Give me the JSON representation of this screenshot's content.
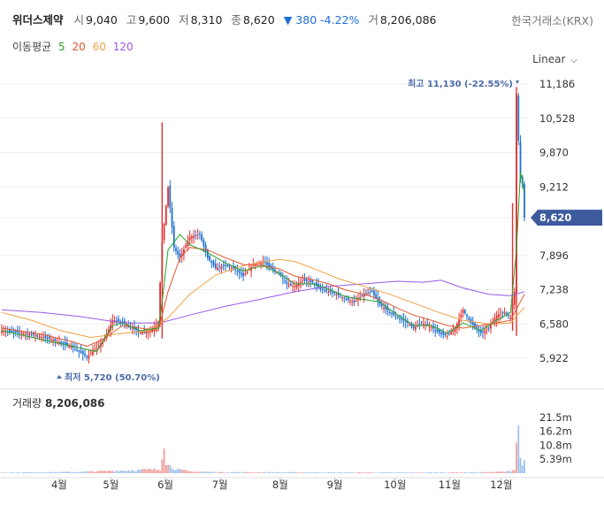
{
  "header": {
    "name": "위더스제약",
    "open_label": "시",
    "open": "9,040",
    "high_label": "고",
    "high": "9,600",
    "low_label": "저",
    "low": "8,310",
    "close_label": "종",
    "close": "8,620",
    "change_arrow": "▼",
    "change": "380",
    "change_pct": "-4.22%",
    "volume_label": "거",
    "volume": "8,206,086"
  },
  "exchange": "한국거래소(KRX)",
  "ma_legend": {
    "label": "이동평균",
    "periods": [
      {
        "text": "5",
        "color": "#2ca02c"
      },
      {
        "text": "20",
        "color": "#e4572e"
      },
      {
        "text": "60",
        "color": "#f0a040"
      },
      {
        "text": "120",
        "color": "#9b59e6"
      }
    ]
  },
  "scale_selector": {
    "value": "Linear"
  },
  "colors": {
    "up": "#e03131",
    "down": "#1f6fd1",
    "price_tag": "#3d5a9e",
    "grid": "#eeeeee"
  },
  "chart_data": [
    {
      "type": "candlestick",
      "y_ticks": [
        "11,186",
        "10,528",
        "9,870",
        "9,212",
        "8,620",
        "7,896",
        "7,238",
        "6,580",
        "5,922"
      ],
      "ylim": [
        5500,
        11500
      ],
      "x_ticks": [
        "4월",
        "5월",
        "6월",
        "7월",
        "8월",
        "9월",
        "10월",
        "11월",
        "12월"
      ],
      "current_price_label": "8,620",
      "high_annotation": "최고 11,130 (-22.55%)",
      "low_annotation": "최저 5,720 (50.70%)",
      "price_anchors": [
        [
          0,
          6450
        ],
        [
          15,
          6380
        ],
        [
          25,
          6280
        ],
        [
          35,
          6150
        ],
        [
          43,
          5950
        ],
        [
          48,
          6120
        ],
        [
          52,
          6300
        ],
        [
          56,
          6650
        ],
        [
          61,
          6620
        ],
        [
          66,
          6500
        ],
        [
          70,
          6420
        ],
        [
          75,
          6440
        ],
        [
          79,
          6600
        ],
        [
          81,
          8150
        ],
        [
          84,
          9200
        ],
        [
          87,
          8050
        ],
        [
          90,
          7850
        ],
        [
          95,
          8250
        ],
        [
          100,
          8300
        ],
        [
          104,
          7850
        ],
        [
          108,
          7650
        ],
        [
          113,
          7700
        ],
        [
          117,
          7650
        ],
        [
          122,
          7500
        ],
        [
          127,
          7720
        ],
        [
          132,
          7780
        ],
        [
          136,
          7650
        ],
        [
          140,
          7550
        ],
        [
          144,
          7350
        ],
        [
          148,
          7300
        ],
        [
          152,
          7420
        ],
        [
          157,
          7380
        ],
        [
          161,
          7250
        ],
        [
          165,
          7200
        ],
        [
          169,
          7150
        ],
        [
          174,
          7050
        ],
        [
          178,
          7000
        ],
        [
          183,
          7150
        ],
        [
          187,
          7200
        ],
        [
          191,
          6950
        ],
        [
          196,
          6800
        ],
        [
          200,
          6700
        ],
        [
          205,
          6600
        ],
        [
          208,
          6500
        ],
        [
          212,
          6600
        ],
        [
          217,
          6520
        ],
        [
          221,
          6400
        ],
        [
          225,
          6350
        ],
        [
          229,
          6500
        ],
        [
          233,
          6850
        ],
        [
          237,
          6600
        ],
        [
          242,
          6400
        ],
        [
          246,
          6500
        ],
        [
          250,
          6750
        ],
        [
          254,
          6800
        ],
        [
          257,
          6700
        ],
        [
          259,
          7200
        ],
        [
          260,
          11000
        ],
        [
          261,
          10100
        ],
        [
          262,
          9400
        ],
        [
          263,
          9250
        ],
        [
          264,
          8620
        ]
      ],
      "ma": {
        "ma5": [
          [
            0,
            6450
          ],
          [
            48,
            6050
          ],
          [
            52,
            6300
          ],
          [
            56,
            6550
          ],
          [
            61,
            6600
          ],
          [
            70,
            6450
          ],
          [
            79,
            6500
          ],
          [
            81,
            7000
          ],
          [
            84,
            8000
          ],
          [
            90,
            8300
          ],
          [
            95,
            8100
          ],
          [
            104,
            7950
          ],
          [
            113,
            7750
          ],
          [
            122,
            7600
          ],
          [
            132,
            7700
          ],
          [
            140,
            7550
          ],
          [
            148,
            7350
          ],
          [
            157,
            7350
          ],
          [
            165,
            7250
          ],
          [
            174,
            7100
          ],
          [
            183,
            7050
          ],
          [
            191,
            7000
          ],
          [
            200,
            6750
          ],
          [
            208,
            6550
          ],
          [
            217,
            6550
          ],
          [
            225,
            6400
          ],
          [
            233,
            6600
          ],
          [
            242,
            6450
          ],
          [
            250,
            6650
          ],
          [
            257,
            6800
          ],
          [
            260,
            8000
          ],
          [
            262,
            9500
          ],
          [
            264,
            9100
          ]
        ],
        "ma20": [
          [
            0,
            6500
          ],
          [
            20,
            6380
          ],
          [
            35,
            6250
          ],
          [
            43,
            6150
          ],
          [
            52,
            6300
          ],
          [
            61,
            6550
          ],
          [
            70,
            6500
          ],
          [
            79,
            6450
          ],
          [
            84,
            7200
          ],
          [
            90,
            7850
          ],
          [
            95,
            8050
          ],
          [
            104,
            8000
          ],
          [
            113,
            7850
          ],
          [
            122,
            7720
          ],
          [
            132,
            7700
          ],
          [
            140,
            7640
          ],
          [
            148,
            7500
          ],
          [
            157,
            7430
          ],
          [
            165,
            7350
          ],
          [
            174,
            7230
          ],
          [
            183,
            7150
          ],
          [
            191,
            7050
          ],
          [
            200,
            6880
          ],
          [
            208,
            6750
          ],
          [
            217,
            6650
          ],
          [
            225,
            6550
          ],
          [
            233,
            6500
          ],
          [
            242,
            6550
          ],
          [
            250,
            6600
          ],
          [
            257,
            6650
          ],
          [
            264,
            7150
          ]
        ],
        "ma60": [
          [
            0,
            6800
          ],
          [
            15,
            6650
          ],
          [
            30,
            6450
          ],
          [
            45,
            6320
          ],
          [
            61,
            6400
          ],
          [
            75,
            6450
          ],
          [
            84,
            6700
          ],
          [
            95,
            7150
          ],
          [
            108,
            7520
          ],
          [
            122,
            7700
          ],
          [
            140,
            7820
          ],
          [
            148,
            7780
          ],
          [
            157,
            7650
          ],
          [
            170,
            7450
          ],
          [
            183,
            7300
          ],
          [
            196,
            7150
          ],
          [
            208,
            6980
          ],
          [
            221,
            6800
          ],
          [
            233,
            6650
          ],
          [
            246,
            6580
          ],
          [
            257,
            6600
          ],
          [
            264,
            6900
          ]
        ],
        "ma120": [
          [
            0,
            6850
          ],
          [
            20,
            6800
          ],
          [
            40,
            6720
          ],
          [
            61,
            6600
          ],
          [
            80,
            6600
          ],
          [
            95,
            6750
          ],
          [
            113,
            6920
          ],
          [
            130,
            7050
          ],
          [
            148,
            7200
          ],
          [
            165,
            7300
          ],
          [
            183,
            7350
          ],
          [
            200,
            7400
          ],
          [
            213,
            7380
          ],
          [
            222,
            7420
          ],
          [
            232,
            7280
          ],
          [
            246,
            7150
          ],
          [
            257,
            7120
          ],
          [
            264,
            7200
          ]
        ]
      }
    },
    {
      "type": "bar",
      "title_label": "거래량",
      "title_value": "8,206,086",
      "y_ticks": [
        "21.5m",
        "16.2m",
        "10.8m",
        "5.39m"
      ],
      "ylim": [
        0,
        26000000
      ],
      "volume_anchors": [
        [
          0,
          250000
        ],
        [
          40,
          500000
        ],
        [
          55,
          900000
        ],
        [
          80,
          1500000
        ],
        [
          81,
          8000000
        ],
        [
          82,
          14000000
        ],
        [
          83,
          5000000
        ],
        [
          84,
          3000000
        ],
        [
          86,
          2500000
        ],
        [
          88,
          1800000
        ],
        [
          90,
          1200000
        ],
        [
          95,
          700000
        ],
        [
          110,
          400000
        ],
        [
          200,
          250000
        ],
        [
          240,
          350000
        ],
        [
          255,
          600000
        ],
        [
          258,
          1200000
        ],
        [
          259,
          1800000
        ],
        [
          260,
          12000000
        ],
        [
          261,
          21000000
        ],
        [
          262,
          5000000
        ],
        [
          263,
          3000000
        ],
        [
          264,
          8206086
        ]
      ]
    }
  ]
}
